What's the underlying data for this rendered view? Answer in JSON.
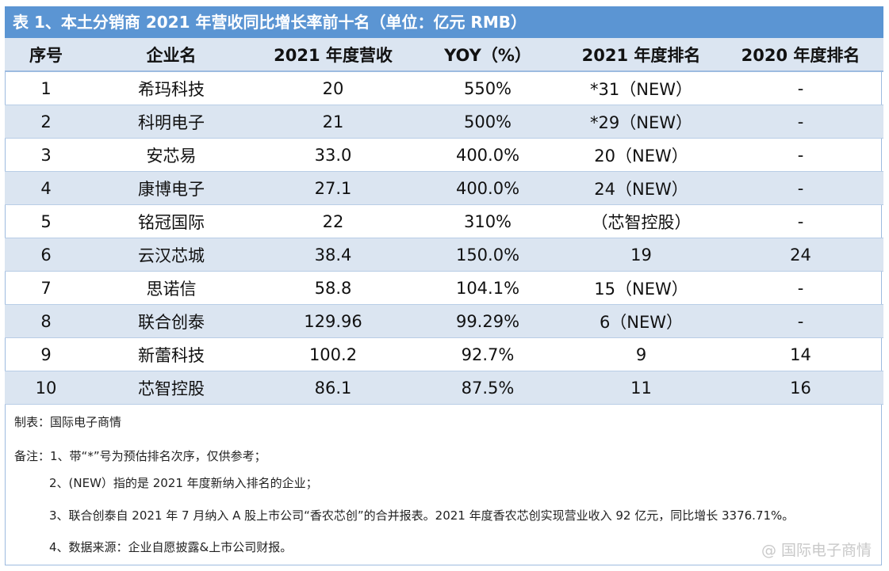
{
  "title": "表 1、本土分销商 2021 年营收同比增长率前十名（单位：亿元 RMB）",
  "table": {
    "header": [
      "序号",
      "企业名",
      "2021 年度营收",
      "YOY（%）",
      "2021 年度排名",
      "2020 年度排名"
    ],
    "rows": [
      [
        "1",
        "希玛科技",
        "20",
        "550%",
        "*31（NEW）",
        "-"
      ],
      [
        "2",
        "科明电子",
        "21",
        "500%",
        "*29（NEW）",
        "-"
      ],
      [
        "3",
        "安芯易",
        "33.0",
        "400.0%",
        "20（NEW）",
        "-"
      ],
      [
        "4",
        "康博电子",
        "27.1",
        "400.0%",
        "24（NEW）",
        "-"
      ],
      [
        "5",
        "铭冠国际",
        "22",
        "310%",
        "（芯智控股）",
        "-"
      ],
      [
        "6",
        "云汉芯城",
        "38.4",
        "150.0%",
        "19",
        "24"
      ],
      [
        "7",
        "思诺信",
        "58.8",
        "104.1%",
        "15（NEW）",
        "-"
      ],
      [
        "8",
        "联合创泰",
        "129.96",
        "99.29%",
        "6（NEW）",
        "-"
      ],
      [
        "9",
        "新蕾科技",
        "100.2",
        "92.7%",
        "9",
        "14"
      ],
      [
        "10",
        "芯智控股",
        "86.1",
        "87.5%",
        "11",
        "16"
      ]
    ]
  },
  "notes": {
    "source": "制表：国际电子商情",
    "items": [
      "备注：1、带“*”号为预估排名次序，仅供参考；",
      "2、(NEW）指的是 2021 年度新纳入排名的企业；",
      "3、联合创泰自 2021 年 7 月纳入 A 股上市公司“香农芯创”的合并报表。2021 年度香农芯创实现营业收入 92 亿元，同比增长 3376.71%。",
      "4、数据来源：企业自愿披露&上市公司财报。"
    ]
  },
  "watermark": "@ 国际电子商情"
}
